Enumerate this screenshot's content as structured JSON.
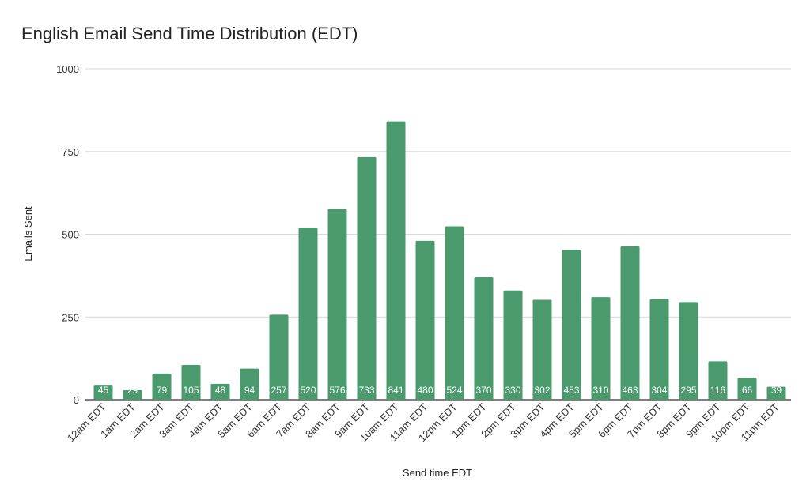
{
  "chart_data": {
    "type": "bar",
    "title": "English Email Send Time Distribution (EDT)",
    "xlabel": "Send time EDT",
    "ylabel": "Emails Sent",
    "ylim": [
      0,
      1000
    ],
    "yticks": [
      "0",
      "250",
      "500",
      "750",
      "1000"
    ],
    "ytick_values": [
      0,
      250,
      500,
      750,
      1000
    ],
    "grid": true,
    "legend": "none",
    "bar_color": "#4a9a6e",
    "categories": [
      "12am EDT",
      "1am EDT",
      "2am EDT",
      "3am EDT",
      "4am EDT",
      "5am EDT",
      "6am EDT",
      "7am EDT",
      "8am EDT",
      "9am EDT",
      "10am EDT",
      "11am EDT",
      "12pm EDT",
      "1pm EDT",
      "2pm EDT",
      "3pm EDT",
      "4pm EDT",
      "5pm EDT",
      "6pm EDT",
      "7pm EDT",
      "8pm EDT",
      "9pm EDT",
      "10pm EDT",
      "11pm EDT"
    ],
    "values": [
      45,
      29,
      79,
      105,
      48,
      94,
      257,
      520,
      576,
      733,
      841,
      480,
      524,
      370,
      330,
      302,
      453,
      310,
      463,
      304,
      295,
      116,
      66,
      39
    ]
  }
}
